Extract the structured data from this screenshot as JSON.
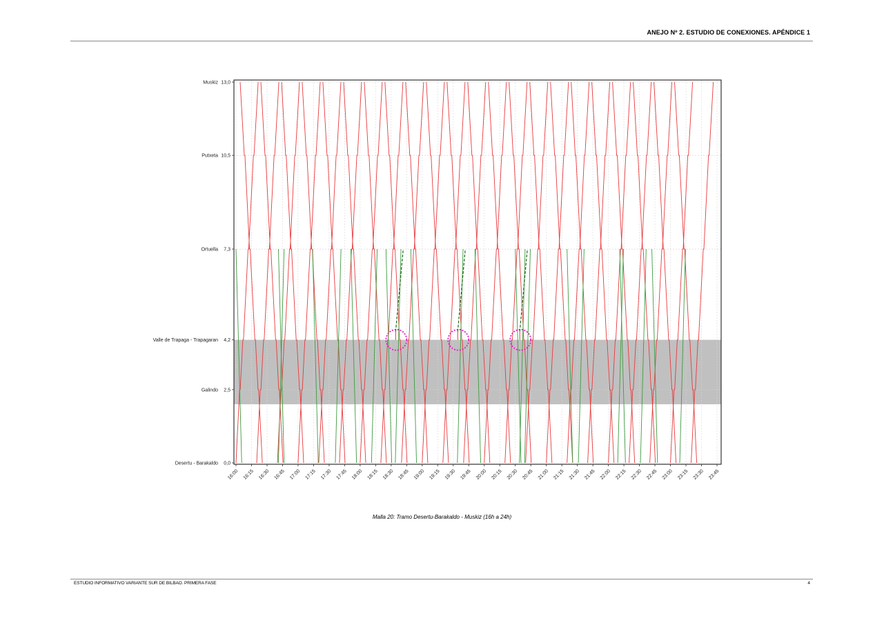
{
  "header": {
    "title": "ANEJO Nº 2. ESTUDIO DE CONEXIONES. APÉNDICE 1"
  },
  "footer": {
    "left": "ESTUDIO INFORMATIVO VARIANTE SUR DE BILBAO. PRIMERA FASE",
    "page_number": "4"
  },
  "caption": "Malla 20: Tramo Desertu-Barakaldo - Muskiz (16h a 24h)",
  "colors": {
    "red_trains": "#e8393c",
    "green_trains": "#3f9b3f",
    "band": "#c0c0c0",
    "highlight": "#e020c0"
  },
  "chart_data": {
    "type": "line",
    "title": "",
    "xlabel": "",
    "ylabel": "",
    "xlim": [
      "16:00",
      "23:45"
    ],
    "ylim": [
      0,
      13.0
    ],
    "grid": true,
    "stations": [
      {
        "name": "Muskiz",
        "km": "13,0",
        "value": 13.0
      },
      {
        "name": "Putxeta",
        "km": "10,5",
        "value": 10.5
      },
      {
        "name": "Ortuella",
        "km": "7,3",
        "value": 7.3
      },
      {
        "name": "Valle de Trapaga - Trapagaran",
        "km": "4,2",
        "value": 4.2
      },
      {
        "name": "Galindo",
        "km": "2,5",
        "value": 2.5
      },
      {
        "name": "Desertu - Barakaldo",
        "km": "0,0",
        "value": 0.0
      }
    ],
    "x_ticks": [
      "16:00",
      "16:15",
      "16:30",
      "16:45",
      "17:00",
      "17:15",
      "17:30",
      "17:45",
      "18:00",
      "18:15",
      "18:30",
      "18:45",
      "19:00",
      "19:15",
      "19:30",
      "19:45",
      "20:00",
      "20:15",
      "20:30",
      "20:45",
      "21:00",
      "21:15",
      "21:30",
      "21:45",
      "22:00",
      "22:15",
      "22:30",
      "22:45",
      "23:00",
      "23:15",
      "23:30",
      "23:45"
    ],
    "shaded_band": {
      "from_km": 2.0,
      "to_km": 4.2
    },
    "highlighted_points": [
      {
        "time": "18:35",
        "km": 4.2
      },
      {
        "time": "19:35",
        "km": 4.2
      },
      {
        "time": "20:35",
        "km": 4.2
      }
    ],
    "series": [
      {
        "color": "red",
        "description_key": "red",
        "up_departures_from_desertu": [
          "16:00",
          "16:20",
          "16:40",
          "17:00",
          "17:20",
          "17:40",
          "18:00",
          "18:20",
          "18:40",
          "19:00",
          "19:20",
          "19:40",
          "20:00",
          "20:20",
          "20:40",
          "21:00",
          "21:20",
          "21:40",
          "22:00",
          "22:20",
          "22:40",
          "23:00",
          "23:20"
        ],
        "down_departures_from_muskiz": [
          "16:04",
          "16:24",
          "16:44",
          "17:04",
          "17:24",
          "17:44",
          "18:04",
          "18:24",
          "18:44",
          "19:04",
          "19:24",
          "19:44",
          "20:04",
          "20:24",
          "20:44",
          "21:04",
          "21:24",
          "21:44",
          "22:04",
          "22:24",
          "22:44",
          "23:04"
        ]
      },
      {
        "color": "green",
        "description_key": "green",
        "up_departures_from_desertu": [
          "16:41",
          "17:36",
          "18:11",
          "18:34",
          "19:34",
          "20:34",
          "20:39",
          "21:31",
          "22:09",
          "22:31",
          "23:09"
        ],
        "down_departures_from_ortuella": [
          "16:00",
          "16:41",
          "17:14",
          "17:51",
          "18:25",
          "18:49",
          "19:51",
          "20:30",
          "21:20",
          "22:11",
          "22:42"
        ]
      }
    ]
  }
}
